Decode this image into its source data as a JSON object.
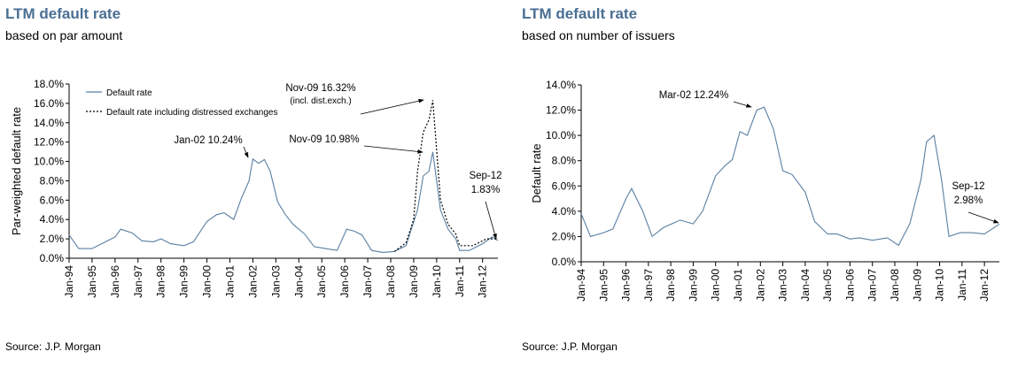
{
  "chart_data": [
    {
      "type": "line",
      "title": "LTM default rate",
      "subtitle": "based on par amount",
      "ylabel": "Par-weighted default rate",
      "xlabel": "",
      "ylim": [
        0,
        18
      ],
      "yticks": [
        "0.0%",
        "2.0%",
        "4.0%",
        "6.0%",
        "8.0%",
        "10.0%",
        "12.0%",
        "14.0%",
        "16.0%",
        "18.0%"
      ],
      "xlim": [
        "1994-01",
        "2012-09"
      ],
      "xticks": [
        "Jan-94",
        "Jan-95",
        "Jan-96",
        "Jan-97",
        "Jan-98",
        "Jan-99",
        "Jan-00",
        "Jan-01",
        "Jan-02",
        "Jan-03",
        "Jan-04",
        "Jan-05",
        "Jan-06",
        "Jan-07",
        "Jan-08",
        "Jan-09",
        "Jan-10",
        "Jan-11",
        "Jan-12"
      ],
      "legend_position": "top-left",
      "grid": false,
      "series": [
        {
          "name": "Default rate",
          "color": "#5a7fa3",
          "style": "solid",
          "points": [
            [
              "1994-01",
              2.4
            ],
            [
              "1994-06",
              1.0
            ],
            [
              "1995-01",
              1.0
            ],
            [
              "1995-06",
              1.5
            ],
            [
              "1996-01",
              2.2
            ],
            [
              "1996-04",
              3.0
            ],
            [
              "1996-10",
              2.6
            ],
            [
              "1997-03",
              1.8
            ],
            [
              "1997-09",
              1.7
            ],
            [
              "1998-01",
              2.0
            ],
            [
              "1998-06",
              1.5
            ],
            [
              "1999-01",
              1.3
            ],
            [
              "1999-06",
              1.7
            ],
            [
              "2000-01",
              3.8
            ],
            [
              "2000-06",
              4.5
            ],
            [
              "2000-10",
              4.7
            ],
            [
              "2001-03",
              4.0
            ],
            [
              "2001-07",
              6.2
            ],
            [
              "2001-11",
              8.0
            ],
            [
              "2002-01",
              10.24
            ],
            [
              "2002-04",
              9.8
            ],
            [
              "2002-07",
              10.2
            ],
            [
              "2002-10",
              9.0
            ],
            [
              "2003-02",
              5.8
            ],
            [
              "2003-06",
              4.5
            ],
            [
              "2003-10",
              3.5
            ],
            [
              "2004-04",
              2.5
            ],
            [
              "2004-09",
              1.2
            ],
            [
              "2005-03",
              1.0
            ],
            [
              "2005-09",
              0.8
            ],
            [
              "2006-02",
              3.0
            ],
            [
              "2006-06",
              2.8
            ],
            [
              "2006-10",
              2.4
            ],
            [
              "2007-03",
              0.8
            ],
            [
              "2007-09",
              0.6
            ],
            [
              "2008-03",
              0.7
            ],
            [
              "2008-09",
              1.3
            ],
            [
              "2009-03",
              5.0
            ],
            [
              "2009-06",
              8.5
            ],
            [
              "2009-09",
              9.0
            ],
            [
              "2009-11",
              10.98
            ],
            [
              "2010-03",
              5.0
            ],
            [
              "2010-07",
              3.0
            ],
            [
              "2010-11",
              2.0
            ],
            [
              "2011-01",
              0.8
            ],
            [
              "2011-06",
              0.8
            ],
            [
              "2012-01",
              1.5
            ],
            [
              "2012-06",
              2.2
            ],
            [
              "2012-09",
              1.83
            ]
          ]
        },
        {
          "name": "Default rate including distressed exchanges",
          "color": "#000000",
          "style": "dotted",
          "points": [
            [
              "2008-03",
              0.7
            ],
            [
              "2008-09",
              1.6
            ],
            [
              "2009-01",
              4.0
            ],
            [
              "2009-03",
              9.0
            ],
            [
              "2009-06",
              13.0
            ],
            [
              "2009-09",
              14.3
            ],
            [
              "2009-11",
              16.32
            ],
            [
              "2010-03",
              6.0
            ],
            [
              "2010-07",
              3.5
            ],
            [
              "2010-11",
              2.5
            ],
            [
              "2011-01",
              1.3
            ],
            [
              "2011-08",
              1.3
            ],
            [
              "2012-03",
              2.0
            ],
            [
              "2012-09",
              2.0
            ]
          ]
        }
      ],
      "annotations": [
        {
          "lines": [
            "Jan-02  10.24%"
          ],
          "at": [
            "2002-01",
            10.24
          ]
        },
        {
          "lines": [
            "Nov-09  16.32%",
            "(incl. dist.exch.)"
          ],
          "at": [
            "2009-11",
            16.32
          ]
        },
        {
          "lines": [
            "Nov-09 10.98%"
          ],
          "at": [
            "2009-11",
            10.98
          ]
        },
        {
          "lines": [
            "Sep-12",
            "1.83%"
          ],
          "at": [
            "2012-09",
            1.83
          ]
        }
      ],
      "source": "Source: J.P. Morgan"
    },
    {
      "type": "line",
      "title": "LTM default rate",
      "subtitle": "based on number of issuers",
      "ylabel": "Default rate",
      "xlabel": "",
      "ylim": [
        0,
        14
      ],
      "yticks": [
        "0.0%",
        "2.0%",
        "4.0%",
        "6.0%",
        "8.0%",
        "10.0%",
        "12.0%",
        "14.0%"
      ],
      "xlim": [
        "1994-01",
        "2012-09"
      ],
      "xticks": [
        "Jan-94",
        "Jan-95",
        "Jan-96",
        "Jan-97",
        "Jan-98",
        "Jan-99",
        "Jan-00",
        "Jan-01",
        "Jan-02",
        "Jan-03",
        "Jan-04",
        "Jan-05",
        "Jan-06",
        "Jan-07",
        "Jan-08",
        "Jan-09",
        "Jan-10",
        "Jan-11",
        "Jan-12"
      ],
      "grid": false,
      "series": [
        {
          "color": "#5a7fa3",
          "style": "solid",
          "points": [
            [
              "1994-01",
              3.8
            ],
            [
              "1994-06",
              2.0
            ],
            [
              "1995-01",
              2.3
            ],
            [
              "1995-06",
              2.6
            ],
            [
              "1996-01",
              5.0
            ],
            [
              "1996-04",
              5.8
            ],
            [
              "1996-10",
              4.0
            ],
            [
              "1997-03",
              2.0
            ],
            [
              "1997-09",
              2.7
            ],
            [
              "1998-06",
              3.3
            ],
            [
              "1999-01",
              3.0
            ],
            [
              "1999-06",
              4.0
            ],
            [
              "2000-01",
              6.8
            ],
            [
              "2000-06",
              7.6
            ],
            [
              "2000-10",
              8.1
            ],
            [
              "2001-02",
              10.3
            ],
            [
              "2001-06",
              10.0
            ],
            [
              "2001-11",
              12.0
            ],
            [
              "2002-03",
              12.24
            ],
            [
              "2002-08",
              10.5
            ],
            [
              "2003-01",
              7.2
            ],
            [
              "2003-06",
              6.9
            ],
            [
              "2004-01",
              5.5
            ],
            [
              "2004-06",
              3.2
            ],
            [
              "2005-01",
              2.2
            ],
            [
              "2005-06",
              2.2
            ],
            [
              "2006-01",
              1.8
            ],
            [
              "2006-06",
              1.9
            ],
            [
              "2007-01",
              1.7
            ],
            [
              "2007-09",
              1.9
            ],
            [
              "2008-03",
              1.3
            ],
            [
              "2008-09",
              3.0
            ],
            [
              "2009-03",
              6.5
            ],
            [
              "2009-06",
              9.5
            ],
            [
              "2009-10",
              10.0
            ],
            [
              "2010-02",
              6.5
            ],
            [
              "2010-06",
              2.0
            ],
            [
              "2010-12",
              2.3
            ],
            [
              "2011-06",
              2.3
            ],
            [
              "2012-01",
              2.2
            ],
            [
              "2012-09",
              2.98
            ]
          ]
        }
      ],
      "annotations": [
        {
          "lines": [
            "Mar-02  12.24%"
          ],
          "at": [
            "2002-03",
            12.24
          ]
        },
        {
          "lines": [
            "Sep-12",
            "2.98%"
          ],
          "at": [
            "2012-09",
            2.98
          ]
        }
      ],
      "source": "Source: J.P. Morgan"
    }
  ]
}
